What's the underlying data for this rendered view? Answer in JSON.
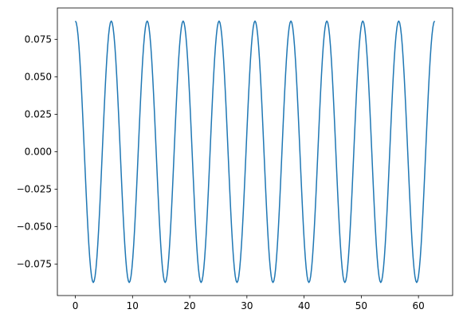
{
  "chart_data": {
    "type": "line",
    "title": "",
    "xlabel": "",
    "ylabel": "",
    "xlim": [
      -3.1416,
      65.9734
    ],
    "ylim": [
      -0.09589,
      0.09589
    ],
    "x_ticks": [
      0,
      10,
      20,
      30,
      40,
      50,
      60
    ],
    "x_tick_labels": [
      "0",
      "10",
      "20",
      "30",
      "40",
      "50",
      "60"
    ],
    "y_ticks": [
      -0.075,
      -0.05,
      -0.025,
      0.0,
      0.025,
      0.05,
      0.075
    ],
    "y_tick_labels": [
      "−0.075",
      "−0.050",
      "−0.025",
      "0.000",
      "0.025",
      "0.050",
      "0.075"
    ],
    "grid": false,
    "legend": "none",
    "series": [
      {
        "color": "#1f77b4",
        "function": "0.0872 * cos(x)",
        "x_range": [
          0,
          62.8319
        ],
        "amplitude": 0.0872,
        "period": 6.2832,
        "sample_count": 400
      }
    ]
  }
}
